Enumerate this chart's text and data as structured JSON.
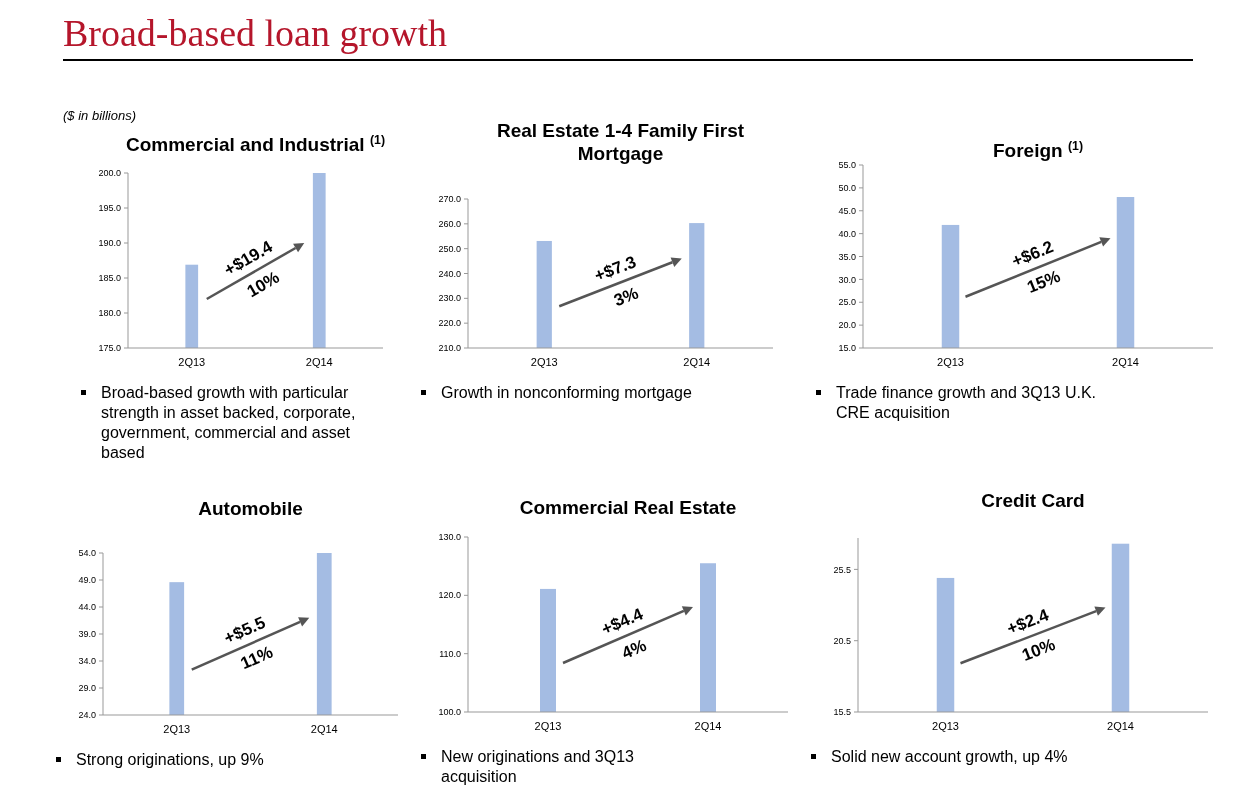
{
  "chart_data": [
    {
      "type": "bar",
      "title": "Commercial and Industrial $^{(1)}$",
      "categories": [
        "2Q13",
        "2Q14"
      ],
      "values": [
        186.9,
        200.0
      ],
      "color": "#a4bce3",
      "ylim": [
        175,
        200
      ],
      "yticks": [
        {
          "value": 175,
          "label": "175.0"
        },
        {
          "value": 180,
          "label": "180.0"
        },
        {
          "value": 185,
          "label": "185.0"
        },
        {
          "value": 190,
          "label": "190.0"
        },
        {
          "value": 195,
          "label": "195.0"
        },
        {
          "value": 200,
          "label": "200.0"
        }
      ],
      "annotations": [
        "Broad-based loan growth",
        "($ in billions)",
        "+$19.4",
        "10%",
        "Broad-based growth with particular strength in asset backed, corporate, government, commercial and asset based"
      ]
    },
    {
      "type": "bar",
      "title": "Real Estate 1-4 Family First Mortgage",
      "categories": [
        "2Q13",
        "2Q14"
      ],
      "values": [
        253.1,
        260.3
      ],
      "color": "#a4bce3",
      "ylim": [
        210,
        270
      ],
      "yticks": [
        {
          "value": 210,
          "label": "210.0"
        },
        {
          "value": 220,
          "label": "220.0"
        },
        {
          "value": 230,
          "label": "230.0"
        },
        {
          "value": 240,
          "label": "240.0"
        },
        {
          "value": 250,
          "label": "250.0"
        },
        {
          "value": 260,
          "label": "260.0"
        },
        {
          "value": 270,
          "label": "270.0"
        }
      ],
      "annotations": [
        "+$7.3",
        "3%",
        "Growth in nonconforming mortgage"
      ]
    },
    {
      "type": "bar",
      "title": "Foreign $^{(1)}$",
      "categories": [
        "2Q13",
        "2Q14"
      ],
      "values": [
        41.9,
        48.0
      ],
      "color": "#a4bce3",
      "ylim": [
        15,
        55
      ],
      "yticks": [
        {
          "value": 15,
          "label": "15.0"
        },
        {
          "value": 20,
          "label": "20.0"
        },
        {
          "value": 25,
          "label": "25.0"
        },
        {
          "value": 30,
          "label": "30.0"
        },
        {
          "value": 35,
          "label": "35.0"
        },
        {
          "value": 40,
          "label": "40.0"
        },
        {
          "value": 45,
          "label": "45.0"
        },
        {
          "value": 50,
          "label": "50.0"
        },
        {
          "value": 55,
          "label": "55.0"
        }
      ],
      "annotations": [
        "+$6.2",
        "15%",
        "Trade finance growth and 3Q13 U.K. CRE acquisition"
      ]
    },
    {
      "type": "bar",
      "title": "Automobile",
      "categories": [
        "2Q13",
        "2Q14"
      ],
      "values": [
        48.6,
        54.0
      ],
      "color": "#a4bce3",
      "ylim": [
        24,
        54
      ],
      "yticks": [
        {
          "value": 24,
          "label": "24.0"
        },
        {
          "value": 29,
          "label": "29.0"
        },
        {
          "value": 34,
          "label": "34.0"
        },
        {
          "value": 39,
          "label": "39.0"
        },
        {
          "value": 44,
          "label": "44.0"
        },
        {
          "value": 49,
          "label": "49.0"
        },
        {
          "value": 54,
          "label": "54.0"
        }
      ],
      "annotations": [
        "+$5.5",
        "11%",
        "Strong originations, up 9%"
      ]
    },
    {
      "type": "bar",
      "title": "Commercial Real Estate",
      "categories": [
        "2Q13",
        "2Q14"
      ],
      "values": [
        121.1,
        125.5
      ],
      "color": "#a4bce3",
      "ylim": [
        100,
        130
      ],
      "yticks": [
        {
          "value": 100,
          "label": "100.0"
        },
        {
          "value": 110,
          "label": "110.0"
        },
        {
          "value": 120,
          "label": "120.0"
        },
        {
          "value": 130,
          "label": "130.0"
        }
      ],
      "annotations": [
        "+$4.4",
        "4%",
        "New originations and 3Q13 acquisition"
      ]
    },
    {
      "type": "bar",
      "title": "Credit Card",
      "categories": [
        "2Q13",
        "2Q14"
      ],
      "values": [
        24.9,
        27.3
      ],
      "color": "#a4bce3",
      "ylim": [
        15.5,
        27.7
      ],
      "yticks": [
        15.5,
        20.5,
        25.5
      ],
      "annotations": [
        "+$2.4",
        "10%",
        "Solid new account growth, up 4%"
      ]
    }
  ]
}
